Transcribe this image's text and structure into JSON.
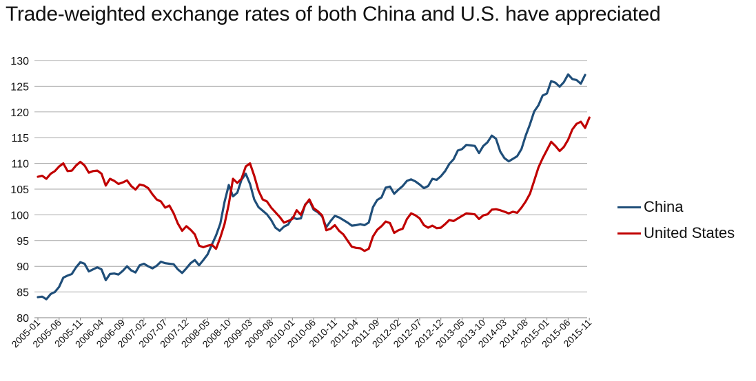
{
  "chart_data": {
    "type": "line",
    "title": "Trade-weighted exchange rates of both China and U.S. have appreciated",
    "xlabel": "",
    "ylabel": "",
    "ylim": [
      80,
      130
    ],
    "yticks": [
      80,
      85,
      90,
      95,
      100,
      105,
      110,
      115,
      120,
      125,
      130
    ],
    "x_tick_labels": [
      "2005-01",
      "2005-06",
      "2005-11",
      "2006-04",
      "2006-09",
      "2007-02",
      "2007-07",
      "2007-12",
      "2008-05",
      "2008-10",
      "2009-03",
      "2009-08",
      "2010-01",
      "2010-06",
      "2010-11",
      "2011-04",
      "2011-09",
      "2012-02",
      "2012-07",
      "2012-12",
      "2013-05",
      "2013-10",
      "2014-03",
      "2014-08",
      "2015-01",
      "2015-06",
      "2015-11"
    ],
    "x_start": "2005-01",
    "x_end": "2015-11",
    "grid": true,
    "legend_position": "right",
    "series": [
      {
        "name": "China",
        "color": "#1f4e79",
        "values": [
          84.0,
          84.1,
          83.6,
          84.6,
          85.0,
          86.0,
          87.8,
          88.2,
          88.5,
          89.8,
          90.8,
          90.5,
          89.0,
          89.4,
          89.8,
          89.4,
          87.3,
          88.5,
          88.6,
          88.4,
          89.1,
          90.0,
          89.2,
          88.8,
          90.2,
          90.5,
          90.0,
          89.6,
          90.1,
          90.9,
          90.6,
          90.5,
          90.4,
          89.4,
          88.7,
          89.6,
          90.6,
          91.2,
          90.2,
          91.2,
          92.3,
          94.2,
          96.0,
          98.3,
          102.5,
          105.8,
          103.6,
          104.3,
          106.8,
          108.0,
          106.0,
          103.0,
          101.5,
          100.8,
          100.1,
          99.0,
          97.5,
          96.9,
          97.7,
          98.1,
          99.5,
          99.2,
          99.3,
          102.0,
          102.8,
          101.0,
          100.5,
          99.7,
          97.6,
          98.8,
          99.8,
          99.5,
          99.0,
          98.5,
          97.9,
          98.0,
          98.2,
          98.0,
          98.5,
          101.5,
          102.9,
          103.4,
          105.3,
          105.5,
          104.1,
          104.9,
          105.6,
          106.6,
          106.9,
          106.5,
          105.9,
          105.2,
          105.6,
          107.0,
          106.8,
          107.5,
          108.5,
          109.9,
          110.8,
          112.5,
          112.8,
          113.6,
          113.5,
          113.4,
          112.0,
          113.4,
          114.1,
          115.4,
          114.8,
          112.3,
          111.0,
          110.4,
          110.9,
          111.4,
          112.8,
          115.4,
          117.6,
          120.1,
          121.3,
          123.2,
          123.6,
          126.0,
          125.7,
          124.9,
          125.8,
          127.3,
          126.4,
          126.2,
          125.5,
          127.2
        ]
      },
      {
        "name": "United States",
        "color": "#c00000",
        "values": [
          107.4,
          107.6,
          107.0,
          108.0,
          108.5,
          109.4,
          110.0,
          108.5,
          108.6,
          109.6,
          110.3,
          109.6,
          108.2,
          108.5,
          108.6,
          108.0,
          105.7,
          107.0,
          106.6,
          106.0,
          106.3,
          106.7,
          105.6,
          104.9,
          105.9,
          105.7,
          105.2,
          104.0,
          103.0,
          102.6,
          101.4,
          101.8,
          100.3,
          98.3,
          96.9,
          97.8,
          97.1,
          96.2,
          94.0,
          93.7,
          94.0,
          94.2,
          93.4,
          95.6,
          98.2,
          102.1,
          107.0,
          106.2,
          107.0,
          109.4,
          110.0,
          107.6,
          104.7,
          103.0,
          102.6,
          101.4,
          100.5,
          99.6,
          98.5,
          98.8,
          99.2,
          100.9,
          100.0,
          101.9,
          103.0,
          101.3,
          100.7,
          99.9,
          97.0,
          97.3,
          98.0,
          96.9,
          96.2,
          95.0,
          93.8,
          93.6,
          93.5,
          93.0,
          93.4,
          95.8,
          97.1,
          97.8,
          98.7,
          98.4,
          96.5,
          97.0,
          97.3,
          99.2,
          100.3,
          99.9,
          99.3,
          98.0,
          97.5,
          97.9,
          97.4,
          97.5,
          98.2,
          99.0,
          98.8,
          99.3,
          99.8,
          100.3,
          100.2,
          100.1,
          99.2,
          99.9,
          100.1,
          101.0,
          101.1,
          100.9,
          100.6,
          100.3,
          100.6,
          100.4,
          101.4,
          102.6,
          104.1,
          106.6,
          109.2,
          111.0,
          112.6,
          114.2,
          113.4,
          112.4,
          113.2,
          114.6,
          116.6,
          117.7,
          118.1,
          116.9,
          118.9
        ]
      }
    ]
  }
}
